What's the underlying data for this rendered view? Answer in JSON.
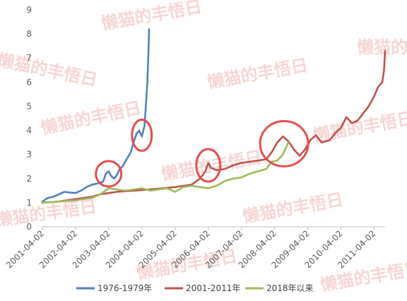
{
  "chart_data": {
    "type": "line",
    "title": "",
    "xlabel": "",
    "ylabel": "",
    "ylim": [
      0,
      9
    ],
    "yticks": [
      0,
      1,
      2,
      3,
      4,
      5,
      6,
      7,
      8,
      9
    ],
    "xticks": [
      "2001-04-02",
      "2002-04-02",
      "2003-04-02",
      "2004-04-02",
      "2005-04-02",
      "2006-04-02",
      "2007-04-02",
      "2008-04-02",
      "2009-04-02",
      "2010-04-02",
      "2011-04-02"
    ],
    "xlim": [
      "2001-04-02",
      "2011-08-01"
    ],
    "grid": "none",
    "legend": "bottom",
    "series": [
      {
        "name": "1976-1979年",
        "color": "#4f81bd",
        "points": [
          [
            "2001-04-02",
            1.05
          ],
          [
            "2001-06-01",
            1.2
          ],
          [
            "2001-08-01",
            1.25
          ],
          [
            "2001-10-01",
            1.35
          ],
          [
            "2001-12-01",
            1.45
          ],
          [
            "2002-02-01",
            1.42
          ],
          [
            "2002-04-01",
            1.4
          ],
          [
            "2002-06-01",
            1.5
          ],
          [
            "2002-08-01",
            1.65
          ],
          [
            "2002-10-01",
            1.75
          ],
          [
            "2002-12-01",
            1.8
          ],
          [
            "2003-02-01",
            1.88
          ],
          [
            "2003-03-01",
            2.2
          ],
          [
            "2003-04-01",
            2.3
          ],
          [
            "2003-05-01",
            2.1
          ],
          [
            "2003-06-01",
            2.0
          ],
          [
            "2003-07-01",
            2.15
          ],
          [
            "2003-08-01",
            2.4
          ],
          [
            "2003-09-01",
            2.5
          ],
          [
            "2003-10-01",
            2.7
          ],
          [
            "2003-11-01",
            2.9
          ],
          [
            "2003-12-01",
            3.1
          ],
          [
            "2004-01-01",
            3.5
          ],
          [
            "2004-02-01",
            3.85
          ],
          [
            "2004-03-01",
            4.0
          ],
          [
            "2004-04-01",
            3.75
          ],
          [
            "2004-05-01",
            4.2
          ],
          [
            "2004-05-15",
            5.0
          ],
          [
            "2004-06-01",
            6.0
          ],
          [
            "2004-06-10",
            7.0
          ],
          [
            "2004-06-20",
            8.2
          ]
        ]
      },
      {
        "name": "2001-2011年",
        "color": "#c0504d",
        "points": [
          [
            "2001-04-02",
            1.0
          ],
          [
            "2001-10-01",
            1.05
          ],
          [
            "2002-04-01",
            1.15
          ],
          [
            "2002-10-01",
            1.25
          ],
          [
            "2003-01-01",
            1.35
          ],
          [
            "2003-04-01",
            1.4
          ],
          [
            "2003-07-01",
            1.45
          ],
          [
            "2004-01-01",
            1.5
          ],
          [
            "2004-07-01",
            1.55
          ],
          [
            "2004-10-01",
            1.58
          ],
          [
            "2005-04-01",
            1.65
          ],
          [
            "2005-10-01",
            1.75
          ],
          [
            "2006-01-01",
            2.0
          ],
          [
            "2006-03-01",
            2.3
          ],
          [
            "2006-04-02",
            2.65
          ],
          [
            "2006-05-01",
            2.45
          ],
          [
            "2006-07-01",
            2.35
          ],
          [
            "2006-10-01",
            2.4
          ],
          [
            "2007-01-01",
            2.55
          ],
          [
            "2007-04-01",
            2.65
          ],
          [
            "2007-07-01",
            2.7
          ],
          [
            "2007-10-01",
            2.75
          ],
          [
            "2008-01-01",
            2.8
          ],
          [
            "2008-03-01",
            3.1
          ],
          [
            "2008-05-01",
            3.5
          ],
          [
            "2008-07-01",
            3.75
          ],
          [
            "2008-09-01",
            3.55
          ],
          [
            "2008-11-01",
            3.2
          ],
          [
            "2009-01-01",
            2.95
          ],
          [
            "2009-03-01",
            3.2
          ],
          [
            "2009-05-01",
            3.6
          ],
          [
            "2009-07-01",
            3.8
          ],
          [
            "2009-09-01",
            3.5
          ],
          [
            "2009-12-01",
            3.6
          ],
          [
            "2010-02-01",
            3.9
          ],
          [
            "2010-04-01",
            4.1
          ],
          [
            "2010-06-01",
            4.55
          ],
          [
            "2010-08-01",
            4.3
          ],
          [
            "2010-10-01",
            4.4
          ],
          [
            "2010-12-01",
            4.7
          ],
          [
            "2011-02-01",
            5.0
          ],
          [
            "2011-04-01",
            5.4
          ],
          [
            "2011-05-15",
            5.8
          ],
          [
            "2011-07-01",
            6.0
          ],
          [
            "2011-07-20",
            6.5
          ],
          [
            "2011-08-01",
            7.3
          ]
        ]
      },
      {
        "name": "2018年以来",
        "color": "#9bbb59",
        "points": [
          [
            "2001-04-02",
            1.0
          ],
          [
            "2001-10-01",
            1.05
          ],
          [
            "2002-04-01",
            1.1
          ],
          [
            "2002-10-01",
            1.2
          ],
          [
            "2003-01-01",
            1.35
          ],
          [
            "2003-04-01",
            1.6
          ],
          [
            "2003-07-01",
            1.55
          ],
          [
            "2003-10-01",
            1.5
          ],
          [
            "2004-01-01",
            1.55
          ],
          [
            "2004-04-01",
            1.6
          ],
          [
            "2004-07-01",
            1.5
          ],
          [
            "2004-10-01",
            1.55
          ],
          [
            "2005-01-01",
            1.6
          ],
          [
            "2005-04-01",
            1.45
          ],
          [
            "2005-07-01",
            1.65
          ],
          [
            "2005-10-01",
            1.7
          ],
          [
            "2006-01-01",
            1.65
          ],
          [
            "2006-04-01",
            1.6
          ],
          [
            "2006-07-01",
            1.7
          ],
          [
            "2006-10-01",
            1.9
          ],
          [
            "2007-01-01",
            2.0
          ],
          [
            "2007-04-01",
            2.05
          ],
          [
            "2007-07-01",
            2.2
          ],
          [
            "2007-10-01",
            2.3
          ],
          [
            "2008-01-01",
            2.4
          ],
          [
            "2008-03-01",
            2.7
          ],
          [
            "2008-05-01",
            2.75
          ],
          [
            "2008-07-01",
            3.0
          ],
          [
            "2008-09-01",
            3.5
          ]
        ]
      }
    ],
    "annotations": [
      {
        "shape": "circle",
        "x": "2003-04-01",
        "y": 2.2
      },
      {
        "shape": "ellipse",
        "x": "2004-04-01",
        "y": 3.8
      },
      {
        "shape": "ellipse",
        "x": "2006-04-02",
        "y": 2.55
      },
      {
        "shape": "circle",
        "x": "2008-07-15",
        "y": 3.45
      }
    ],
    "annotation_color": "#e84c4c"
  },
  "watermark": {
    "text": "懒猫的丰悟日",
    "color": "#f2b4b4"
  }
}
